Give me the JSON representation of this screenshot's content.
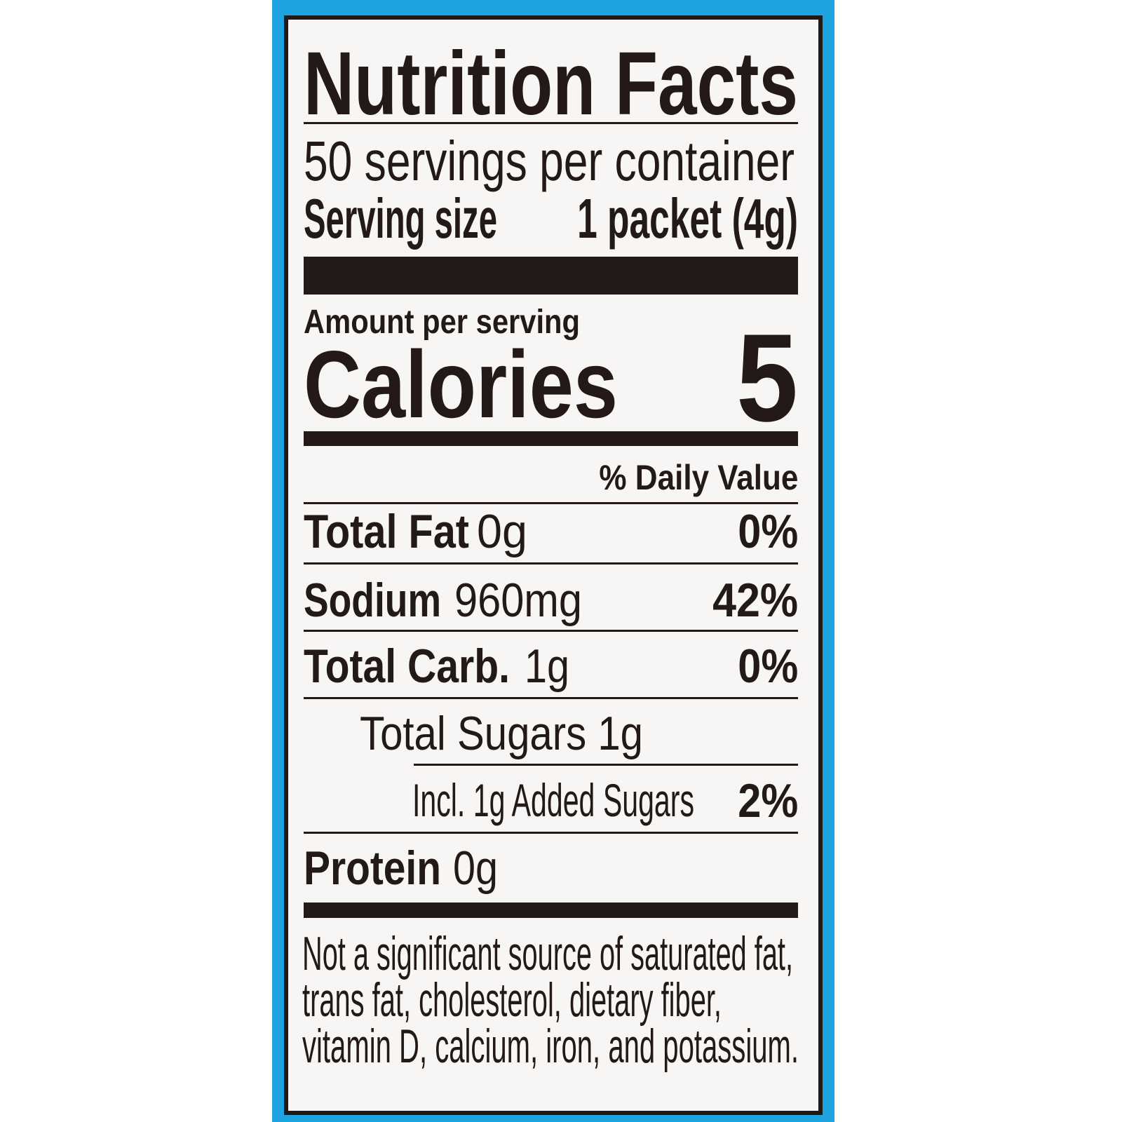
{
  "colors": {
    "background": "#1da3e0",
    "label": "#f7f6f5",
    "ink": "#231a17"
  },
  "title": "Nutrition Facts",
  "servings_per_container": "50 servings per container",
  "serving_size": {
    "label": "Serving size",
    "value": "1 packet (4g)"
  },
  "amount_per_serving": "Amount per serving",
  "calories": {
    "label": "Calories",
    "value": "5"
  },
  "daily_value_header": "% Daily Value",
  "nutrients": [
    {
      "name": "Total Fat",
      "amount": "0g",
      "dv": "0%"
    },
    {
      "name": "Sodium",
      "amount": "960mg",
      "dv": "42%"
    },
    {
      "name": "Total Carb.",
      "amount": "1g",
      "dv": "0%"
    },
    {
      "name": "Total Sugars 1g"
    },
    {
      "name": "Incl. 1g Added Sugars",
      "dv": "2%"
    },
    {
      "name": "Protein",
      "amount": "0g"
    }
  ],
  "footnote": [
    "Not a significant source of saturated fat,",
    "trans fat, cholesterol, dietary fiber,",
    "vitamin D, calcium, iron, and potassium."
  ]
}
